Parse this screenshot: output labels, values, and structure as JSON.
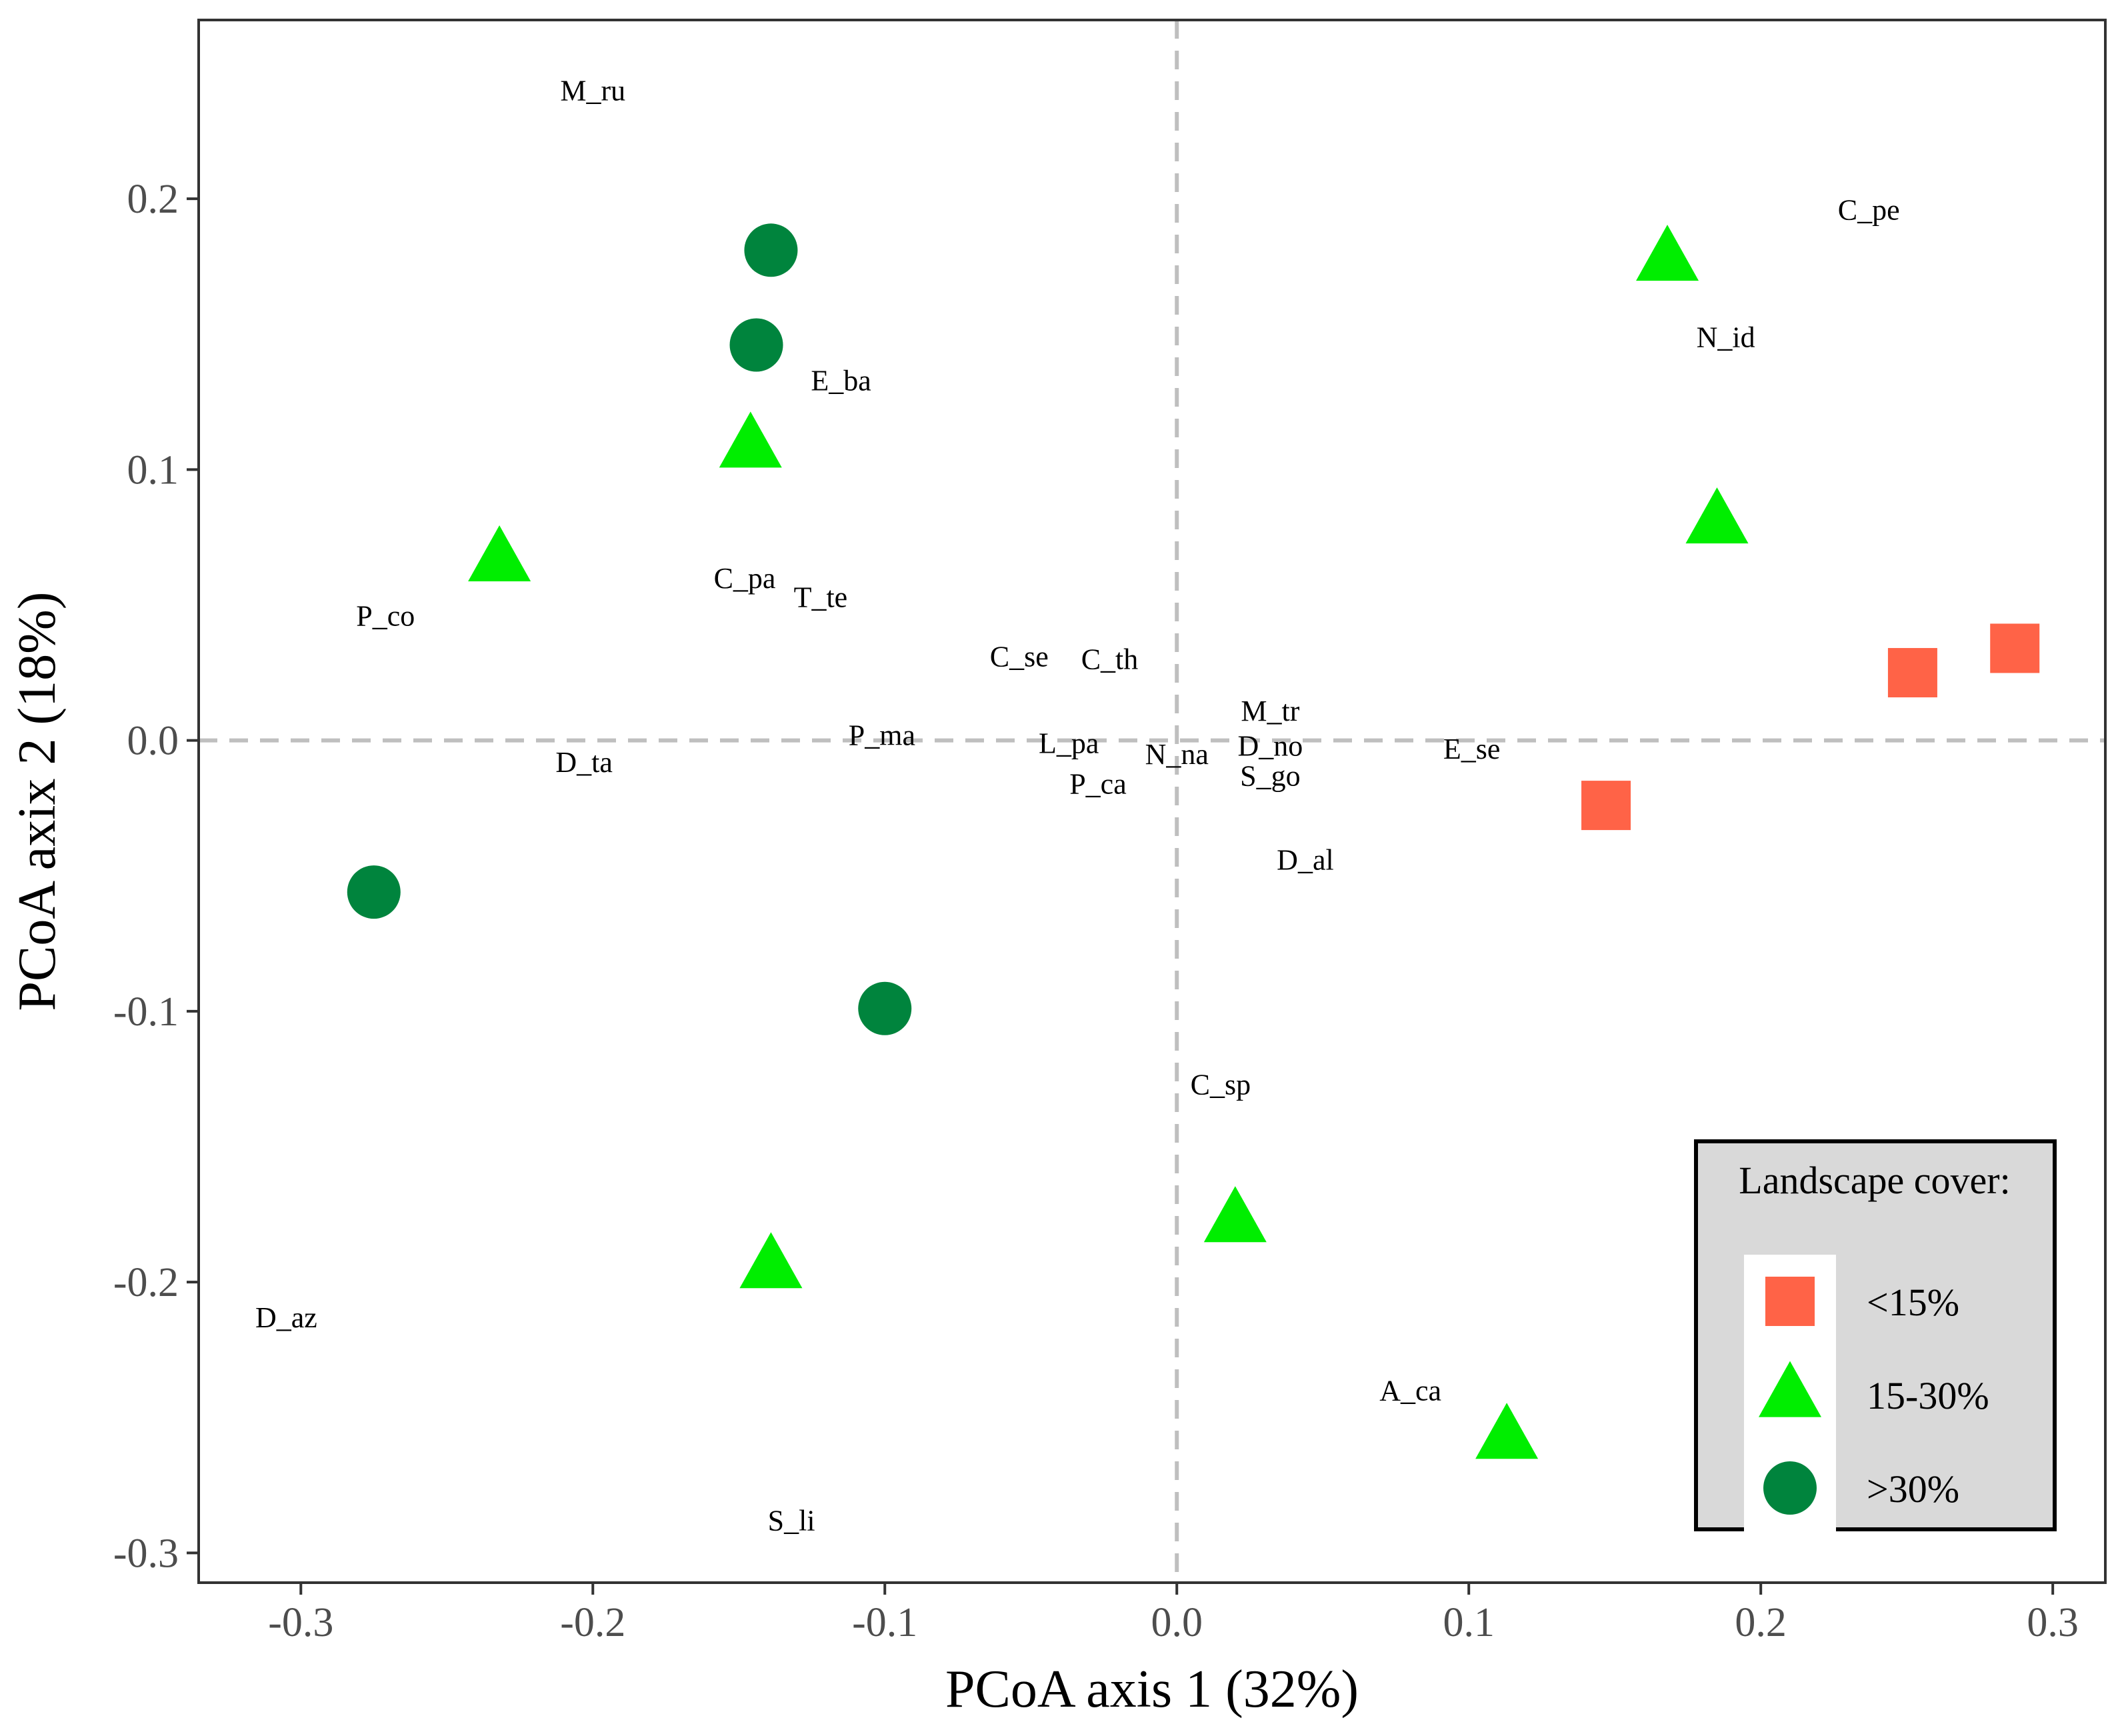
{
  "chart_data": {
    "type": "scatter",
    "xlabel": "PCoA axis 1 (32%)",
    "ylabel": "PCoA axix 2 (18%)",
    "xlim": [
      -0.335,
      0.318
    ],
    "ylim": [
      -0.311,
      0.266
    ],
    "x_ticks": [
      -0.3,
      -0.2,
      -0.1,
      0.0,
      0.1,
      0.2,
      0.3
    ],
    "x_tick_labels": [
      "-0.3",
      "-0.2",
      "-0.1",
      "0.0",
      "0.1",
      "0.2",
      "0.3"
    ],
    "y_ticks": [
      -0.3,
      -0.2,
      -0.1,
      0.0,
      0.1,
      0.2
    ],
    "y_tick_labels": [
      "-0.3",
      "-0.2",
      "-0.1",
      "0.0",
      "0.1",
      "0.2"
    ],
    "reference_lines": {
      "x": 0.0,
      "y": 0.0,
      "style": "dashed",
      "color": "#bfbfbf"
    },
    "grid": false,
    "legend": {
      "title": "Landscape cover:",
      "position": "bottom-right",
      "entries": [
        {
          "label": "<15%",
          "shape": "square",
          "color": "#ff6347"
        },
        {
          "label": "15-30%",
          "shape": "triangle",
          "color": "#00ee00"
        },
        {
          "label": ">30%",
          "shape": "circle",
          "color": "#00843d"
        }
      ]
    },
    "series": [
      {
        "name": "<15%",
        "shape": "square",
        "color": "#ff6347",
        "points": [
          [
            0.147,
            -0.024
          ],
          [
            0.252,
            0.025
          ],
          [
            0.287,
            0.034
          ]
        ]
      },
      {
        "name": "15-30%",
        "shape": "triangle",
        "color": "#00ee00",
        "points": [
          [
            0.168,
            0.178
          ],
          [
            -0.146,
            0.109
          ],
          [
            0.185,
            0.081
          ],
          [
            -0.232,
            0.067
          ],
          [
            0.02,
            -0.177
          ],
          [
            -0.139,
            -0.194
          ],
          [
            0.113,
            -0.257
          ]
        ]
      },
      {
        "name": ">30%",
        "shape": "circle",
        "color": "#00843d",
        "points": [
          [
            -0.139,
            0.181
          ],
          [
            -0.144,
            0.146
          ],
          [
            -0.275,
            -0.056
          ],
          [
            -0.1,
            -0.099
          ]
        ]
      }
    ],
    "species_labels": [
      {
        "text": "M_ru",
        "x": -0.2,
        "y": 0.24
      },
      {
        "text": "C_pe",
        "x": 0.237,
        "y": 0.196
      },
      {
        "text": "N_id",
        "x": 0.188,
        "y": 0.149
      },
      {
        "text": "E_ba",
        "x": -0.115,
        "y": 0.133
      },
      {
        "text": "C_pa",
        "x": -0.148,
        "y": 0.06
      },
      {
        "text": "T_te",
        "x": -0.122,
        "y": 0.053
      },
      {
        "text": "P_co",
        "x": -0.271,
        "y": 0.046
      },
      {
        "text": "C_se",
        "x": -0.054,
        "y": 0.031
      },
      {
        "text": "C_th",
        "x": -0.023,
        "y": 0.03
      },
      {
        "text": "M_tr",
        "x": 0.032,
        "y": 0.011
      },
      {
        "text": "P_ma",
        "x": -0.101,
        "y": 0.002
      },
      {
        "text": "L_pa",
        "x": -0.037,
        "y": -0.001
      },
      {
        "text": "D_no",
        "x": 0.032,
        "y": -0.002
      },
      {
        "text": "E_se",
        "x": 0.101,
        "y": -0.003
      },
      {
        "text": "N_na",
        "x": 0.0,
        "y": -0.005
      },
      {
        "text": "D_ta",
        "x": -0.203,
        "y": -0.008
      },
      {
        "text": "S_go",
        "x": 0.032,
        "y": -0.013
      },
      {
        "text": "P_ca",
        "x": -0.027,
        "y": -0.016
      },
      {
        "text": "D_al",
        "x": 0.044,
        "y": -0.044
      },
      {
        "text": "C_sp",
        "x": 0.015,
        "y": -0.127
      },
      {
        "text": "D_az",
        "x": -0.305,
        "y": -0.213
      },
      {
        "text": "A_ca",
        "x": 0.08,
        "y": -0.24
      },
      {
        "text": "S_li",
        "x": -0.132,
        "y": -0.288
      }
    ]
  }
}
